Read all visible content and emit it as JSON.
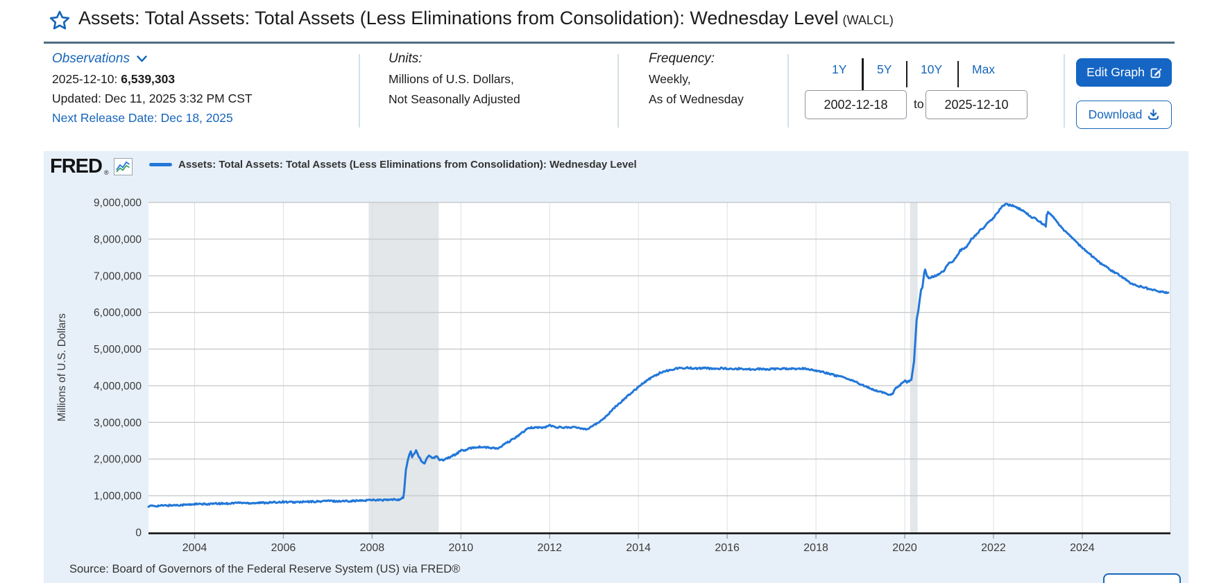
{
  "header": {
    "title": "Assets: Total Assets: Total Assets (Less Eliminations from Consolidation): Wednesday Level",
    "ticker": "(WALCL)"
  },
  "meta": {
    "observations": {
      "label": "Observations",
      "date_label": "2025-12-10:",
      "value": "6,539,303",
      "updated": "Updated: Dec 11, 2025 3:32 PM CST",
      "next_release": "Next Release Date: Dec 18, 2025"
    },
    "units": {
      "label": "Units:",
      "line1": "Millions of U.S. Dollars,",
      "line2": "Not Seasonally Adjusted"
    },
    "frequency": {
      "label": "Frequency:",
      "line1": "Weekly,",
      "line2": "As of Wednesday"
    },
    "range": {
      "opt_1y": "1Y",
      "opt_5y": "5Y",
      "opt_10y": "10Y",
      "opt_max": "Max",
      "from": "2002-12-18",
      "to_label": "to",
      "to": "2025-12-10"
    },
    "actions": {
      "edit": "Edit Graph",
      "download": "Download"
    }
  },
  "chart": {
    "logo": "FRED",
    "reg_mark": "®",
    "legend_label": "Assets: Total Assets: Total Assets (Less Eliminations from Consolidation): Wednesday Level",
    "source": "Source: Board of Governors of the Federal Reserve System (US) via FRED®"
  },
  "chart_data": {
    "type": "line",
    "title": "Assets: Total Assets: Total Assets (Less Eliminations from Consolidation): Wednesday Level",
    "ylabel": "Millions of U.S. Dollars",
    "xlabel": "",
    "xlim": [
      2002.96,
      2025.94
    ],
    "ylim": [
      0,
      9000000
    ],
    "x_ticks": [
      2004,
      2006,
      2008,
      2010,
      2012,
      2014,
      2016,
      2018,
      2020,
      2022,
      2024
    ],
    "y_ticks": [
      0,
      1000000,
      2000000,
      3000000,
      4000000,
      5000000,
      6000000,
      7000000,
      8000000,
      9000000
    ],
    "y_tick_labels": [
      "0",
      "1,000,000",
      "2,000,000",
      "3,000,000",
      "4,000,000",
      "5,000,000",
      "6,000,000",
      "7,000,000",
      "8,000,000",
      "9,000,000"
    ],
    "grid": true,
    "legend_position": "top-left",
    "line_color": "#2277d8",
    "recession_color": "#e3e7ea",
    "recessions": [
      [
        2007.92,
        2009.5
      ],
      [
        2020.12,
        2020.29
      ]
    ],
    "series": [
      {
        "name": "WALCL",
        "points": [
          [
            2002.96,
            719000
          ],
          [
            2003.1,
            722000
          ],
          [
            2003.3,
            731000
          ],
          [
            2003.6,
            745000
          ],
          [
            2003.9,
            758000
          ],
          [
            2003.97,
            772000
          ],
          [
            2004.2,
            769000
          ],
          [
            2004.5,
            783000
          ],
          [
            2004.8,
            792000
          ],
          [
            2004.97,
            811000
          ],
          [
            2005.2,
            800000
          ],
          [
            2005.5,
            808000
          ],
          [
            2005.8,
            818000
          ],
          [
            2005.97,
            835000
          ],
          [
            2006.2,
            822000
          ],
          [
            2006.5,
            832000
          ],
          [
            2006.8,
            843000
          ],
          [
            2006.97,
            862000
          ],
          [
            2007.2,
            850000
          ],
          [
            2007.5,
            858000
          ],
          [
            2007.8,
            866000
          ],
          [
            2007.97,
            891000
          ],
          [
            2008.2,
            880000
          ],
          [
            2008.4,
            888000
          ],
          [
            2008.6,
            897000
          ],
          [
            2008.7,
            940000
          ],
          [
            2008.72,
            1120000
          ],
          [
            2008.74,
            1400000
          ],
          [
            2008.76,
            1700000
          ],
          [
            2008.8,
            1950000
          ],
          [
            2008.84,
            2140000
          ],
          [
            2008.87,
            2210000
          ],
          [
            2008.9,
            2060000
          ],
          [
            2008.93,
            2110000
          ],
          [
            2008.99,
            2240000
          ],
          [
            2009.05,
            2070000
          ],
          [
            2009.12,
            1920000
          ],
          [
            2009.18,
            1880000
          ],
          [
            2009.25,
            2070000
          ],
          [
            2009.3,
            2080000
          ],
          [
            2009.38,
            2020000
          ],
          [
            2009.45,
            2070000
          ],
          [
            2009.52,
            1990000
          ],
          [
            2009.6,
            1980000
          ],
          [
            2009.7,
            2030000
          ],
          [
            2009.8,
            2080000
          ],
          [
            2009.9,
            2140000
          ],
          [
            2009.99,
            2230000
          ],
          [
            2010.1,
            2240000
          ],
          [
            2010.25,
            2310000
          ],
          [
            2010.4,
            2330000
          ],
          [
            2010.55,
            2320000
          ],
          [
            2010.7,
            2300000
          ],
          [
            2010.85,
            2290000
          ],
          [
            2011.0,
            2420000
          ],
          [
            2011.15,
            2520000
          ],
          [
            2011.3,
            2650000
          ],
          [
            2011.45,
            2780000
          ],
          [
            2011.55,
            2850000
          ],
          [
            2011.7,
            2870000
          ],
          [
            2011.85,
            2850000
          ],
          [
            2012.0,
            2920000
          ],
          [
            2012.1,
            2880000
          ],
          [
            2012.3,
            2860000
          ],
          [
            2012.5,
            2870000
          ],
          [
            2012.7,
            2840000
          ],
          [
            2012.85,
            2820000
          ],
          [
            2012.95,
            2900000
          ],
          [
            2013.1,
            2990000
          ],
          [
            2013.3,
            3200000
          ],
          [
            2013.5,
            3450000
          ],
          [
            2013.7,
            3660000
          ],
          [
            2013.9,
            3870000
          ],
          [
            2014.1,
            4070000
          ],
          [
            2014.3,
            4230000
          ],
          [
            2014.5,
            4360000
          ],
          [
            2014.7,
            4430000
          ],
          [
            2014.9,
            4480000
          ],
          [
            2015.1,
            4490000
          ],
          [
            2015.3,
            4470000
          ],
          [
            2015.5,
            4480000
          ],
          [
            2015.7,
            4460000
          ],
          [
            2015.9,
            4480000
          ],
          [
            2016.1,
            4450000
          ],
          [
            2016.3,
            4470000
          ],
          [
            2016.5,
            4450000
          ],
          [
            2016.7,
            4460000
          ],
          [
            2016.9,
            4450000
          ],
          [
            2017.1,
            4460000
          ],
          [
            2017.3,
            4470000
          ],
          [
            2017.5,
            4460000
          ],
          [
            2017.7,
            4470000
          ],
          [
            2017.9,
            4440000
          ],
          [
            2018.1,
            4390000
          ],
          [
            2018.3,
            4330000
          ],
          [
            2018.5,
            4260000
          ],
          [
            2018.7,
            4200000
          ],
          [
            2018.9,
            4100000
          ],
          [
            2019.1,
            3990000
          ],
          [
            2019.3,
            3890000
          ],
          [
            2019.5,
            3810000
          ],
          [
            2019.65,
            3760000
          ],
          [
            2019.72,
            3770000
          ],
          [
            2019.8,
            3930000
          ],
          [
            2019.9,
            4020000
          ],
          [
            2019.99,
            4140000
          ],
          [
            2020.05,
            4100000
          ],
          [
            2020.1,
            4130000
          ],
          [
            2020.15,
            4160000
          ],
          [
            2020.21,
            4670000
          ],
          [
            2020.24,
            5250000
          ],
          [
            2020.27,
            5810000
          ],
          [
            2020.31,
            6080000
          ],
          [
            2020.34,
            6370000
          ],
          [
            2020.37,
            6620000
          ],
          [
            2020.4,
            6690000
          ],
          [
            2020.44,
            7090000
          ],
          [
            2020.46,
            7170000
          ],
          [
            2020.5,
            7010000
          ],
          [
            2020.54,
            6930000
          ],
          [
            2020.6,
            6960000
          ],
          [
            2020.7,
            7010000
          ],
          [
            2020.8,
            7060000
          ],
          [
            2020.9,
            7150000
          ],
          [
            2020.99,
            7360000
          ],
          [
            2021.1,
            7400000
          ],
          [
            2021.25,
            7690000
          ],
          [
            2021.4,
            7790000
          ],
          [
            2021.5,
            8000000
          ],
          [
            2021.6,
            8100000
          ],
          [
            2021.7,
            8240000
          ],
          [
            2021.8,
            8340000
          ],
          [
            2021.9,
            8480000
          ],
          [
            2021.99,
            8570000
          ],
          [
            2022.1,
            8730000
          ],
          [
            2022.2,
            8900000
          ],
          [
            2022.28,
            8960000
          ],
          [
            2022.35,
            8930000
          ],
          [
            2022.45,
            8910000
          ],
          [
            2022.55,
            8850000
          ],
          [
            2022.65,
            8780000
          ],
          [
            2022.75,
            8700000
          ],
          [
            2022.85,
            8600000
          ],
          [
            2022.95,
            8550000
          ],
          [
            2023.05,
            8470000
          ],
          [
            2023.12,
            8400000
          ],
          [
            2023.18,
            8340000
          ],
          [
            2023.2,
            8640000
          ],
          [
            2023.23,
            8730000
          ],
          [
            2023.28,
            8680000
          ],
          [
            2023.35,
            8590000
          ],
          [
            2023.45,
            8440000
          ],
          [
            2023.55,
            8280000
          ],
          [
            2023.65,
            8180000
          ],
          [
            2023.75,
            8060000
          ],
          [
            2023.85,
            7940000
          ],
          [
            2023.95,
            7820000
          ],
          [
            2024.05,
            7710000
          ],
          [
            2024.15,
            7620000
          ],
          [
            2024.25,
            7500000
          ],
          [
            2024.35,
            7400000
          ],
          [
            2024.45,
            7300000
          ],
          [
            2024.55,
            7230000
          ],
          [
            2024.65,
            7140000
          ],
          [
            2024.75,
            7080000
          ],
          [
            2024.85,
            7010000
          ],
          [
            2024.95,
            6920000
          ],
          [
            2025.05,
            6830000
          ],
          [
            2025.15,
            6760000
          ],
          [
            2025.25,
            6720000
          ],
          [
            2025.35,
            6690000
          ],
          [
            2025.45,
            6660000
          ],
          [
            2025.55,
            6620000
          ],
          [
            2025.65,
            6600000
          ],
          [
            2025.75,
            6570000
          ],
          [
            2025.85,
            6550000
          ],
          [
            2025.94,
            6539303
          ]
        ]
      }
    ]
  }
}
